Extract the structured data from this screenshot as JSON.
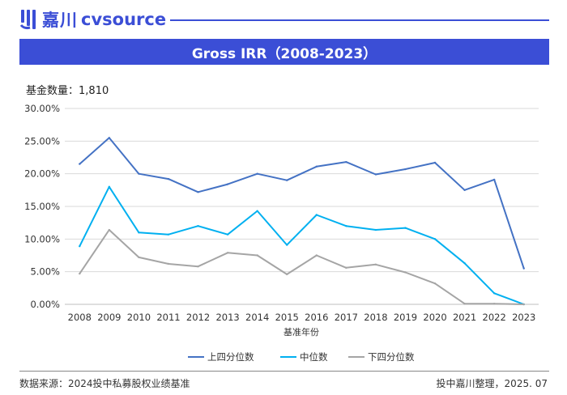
{
  "brand": {
    "cn": "嘉川",
    "en": "cvsource",
    "color": "#3b4ed6"
  },
  "header": {
    "title": "Gross IRR（2008-2023）"
  },
  "fund_count": {
    "label": "基金数量：",
    "value": "1,810"
  },
  "footer": {
    "source": "数据来源：2024投中私募股权业绩基准",
    "credit": "投中嘉川整理，2025. 07"
  },
  "chart_data": {
    "type": "line",
    "title": "Gross IRR（2008-2023）",
    "xlabel": "基准年份",
    "ylabel": "",
    "ylim": [
      0,
      30
    ],
    "yticks": [
      0,
      5,
      10,
      15,
      20,
      25,
      30
    ],
    "ytick_labels": [
      "0.00%",
      "5.00%",
      "10.00%",
      "15.00%",
      "20.00%",
      "25.00%",
      "30.00%"
    ],
    "grid": "horizontal",
    "legend": "bottom-center",
    "categories": [
      "2008",
      "2009",
      "2010",
      "2011",
      "2012",
      "2013",
      "2014",
      "2015",
      "2016",
      "2017",
      "2018",
      "2019",
      "2020",
      "2021",
      "2022",
      "2023"
    ],
    "series": [
      {
        "name": "上四分位数",
        "color": "#4472c4",
        "values": [
          21.5,
          25.5,
          20.0,
          19.2,
          17.2,
          18.4,
          20.0,
          19.0,
          21.1,
          21.8,
          19.9,
          20.7,
          21.7,
          17.5,
          19.1,
          5.5
        ]
      },
      {
        "name": "中位数",
        "color": "#00b0f0",
        "values": [
          8.9,
          18.0,
          11.0,
          10.7,
          12.0,
          10.7,
          14.3,
          9.1,
          13.7,
          12.0,
          11.4,
          11.7,
          10.0,
          6.3,
          1.7,
          0.0
        ]
      },
      {
        "name": "下四分位数",
        "color": "#a5a5a5",
        "values": [
          4.7,
          11.4,
          7.2,
          6.2,
          5.8,
          7.9,
          7.5,
          4.6,
          7.5,
          5.6,
          6.1,
          4.9,
          3.2,
          0.1,
          0.1,
          0.0
        ]
      }
    ]
  }
}
